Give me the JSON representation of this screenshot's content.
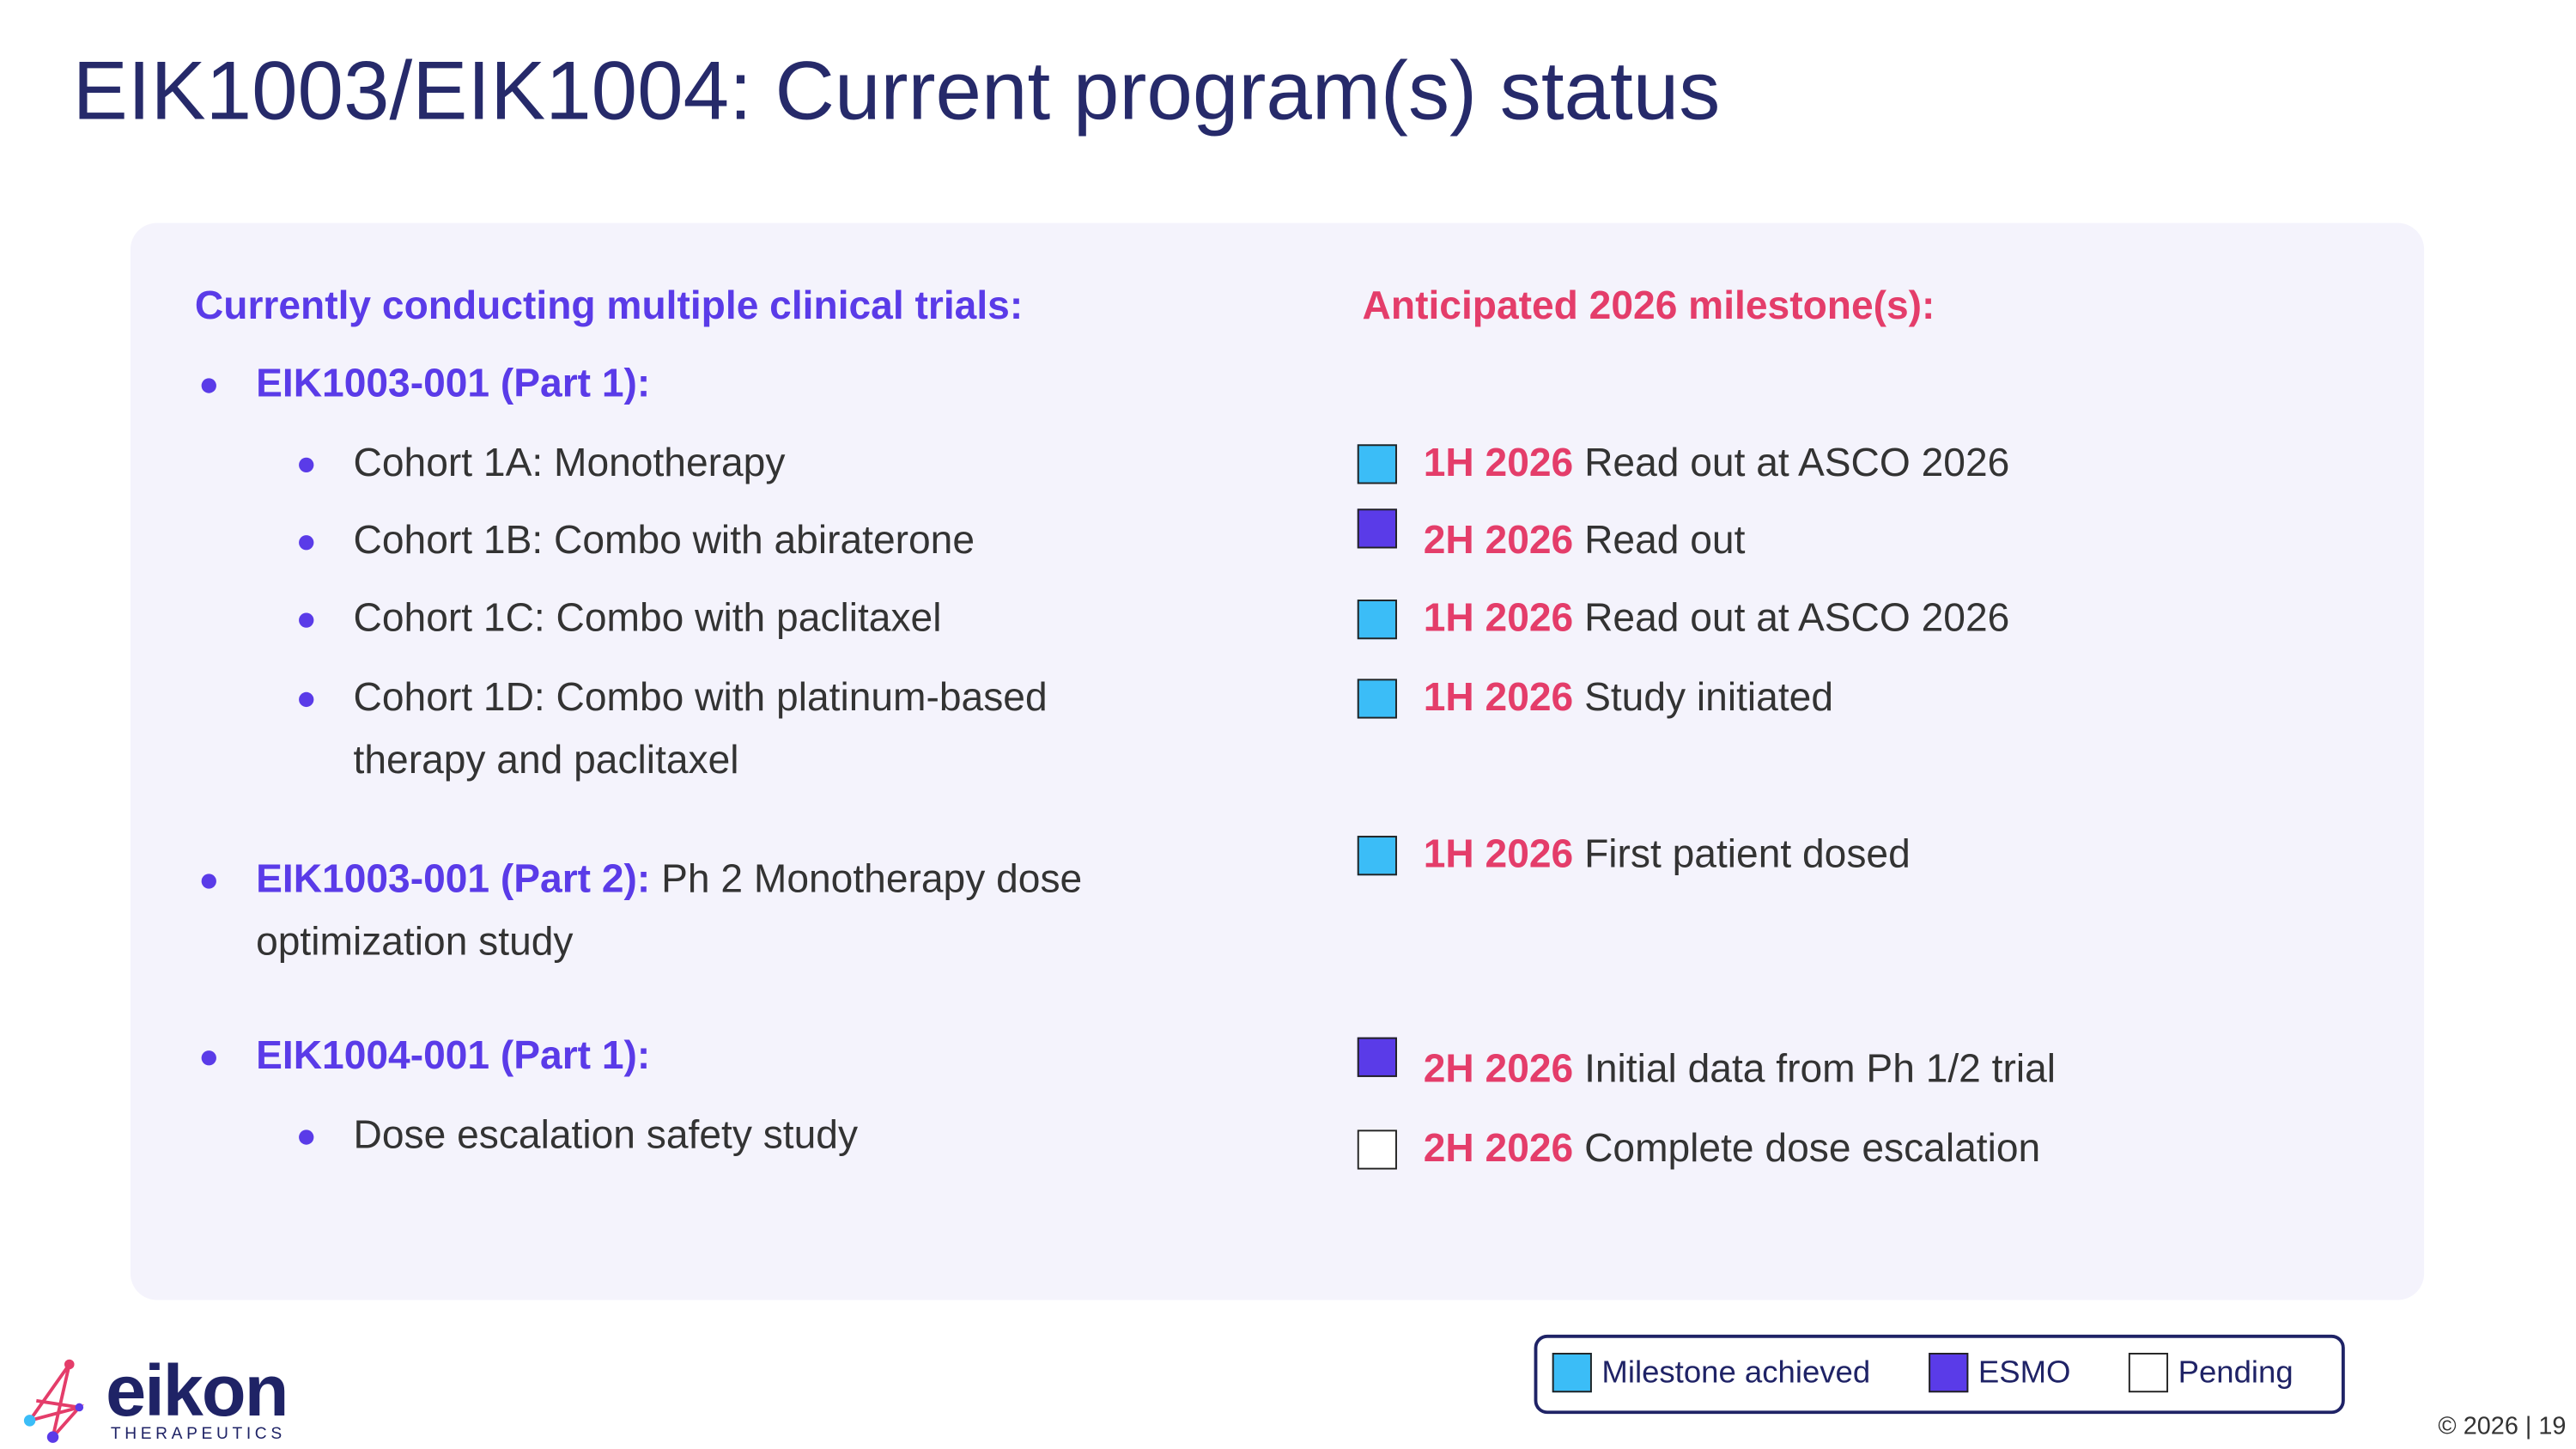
{
  "header": {
    "title": "EIK1003/EIK1004: Current program(s) status"
  },
  "left": {
    "heading": "Currently conducting multiple clinical trials:",
    "trials": [
      {
        "label": "EIK1003-001 (Part 1):",
        "cohorts": [
          "Cohort 1A: Monotherapy",
          "Cohort 1B: Combo with abiraterone",
          "Cohort 1C: Combo with paclitaxel",
          "Cohort 1D: Combo with platinum-based therapy and paclitaxel"
        ]
      },
      {
        "label": "EIK1003-001 (Part 2):",
        "detail": "Ph 2 Monotherapy dose optimization study"
      },
      {
        "label": "EIK1004-001 (Part 1):",
        "cohorts": [
          "Dose escalation safety study"
        ]
      }
    ]
  },
  "right": {
    "heading": "Anticipated 2026 milestone(s):",
    "milestones": [
      {
        "period": "1H 2026",
        "text": "Read out at ASCO 2026",
        "color": "#3bbdf7"
      },
      {
        "period": "2H 2026",
        "text": "Read out",
        "color": "#5a3be8"
      },
      {
        "period": "1H 2026",
        "text": "Read out at ASCO 2026",
        "color": "#3bbdf7"
      },
      {
        "period": "1H 2026",
        "text": "Study initiated",
        "color": "#3bbdf7"
      },
      {
        "period": "1H 2026",
        "text": "First patient dosed",
        "color": "#3bbdf7"
      },
      {
        "period": "2H 2026",
        "text": "Initial data from Ph 1/2 trial",
        "color": "#5a3be8"
      },
      {
        "period": "2H 2026",
        "text": "Complete dose escalation",
        "color": "#ffffff"
      }
    ]
  },
  "legend": [
    {
      "label": "Milestone achieved",
      "color": "#3bbdf7"
    },
    {
      "label": "ESMO",
      "color": "#5a3be8"
    },
    {
      "label": "Pending",
      "color": "#ffffff"
    }
  ],
  "logo": {
    "name": "eikon",
    "tagline": "THERAPEUTICS"
  },
  "footer": {
    "copyright": "© 2026 | 19"
  }
}
